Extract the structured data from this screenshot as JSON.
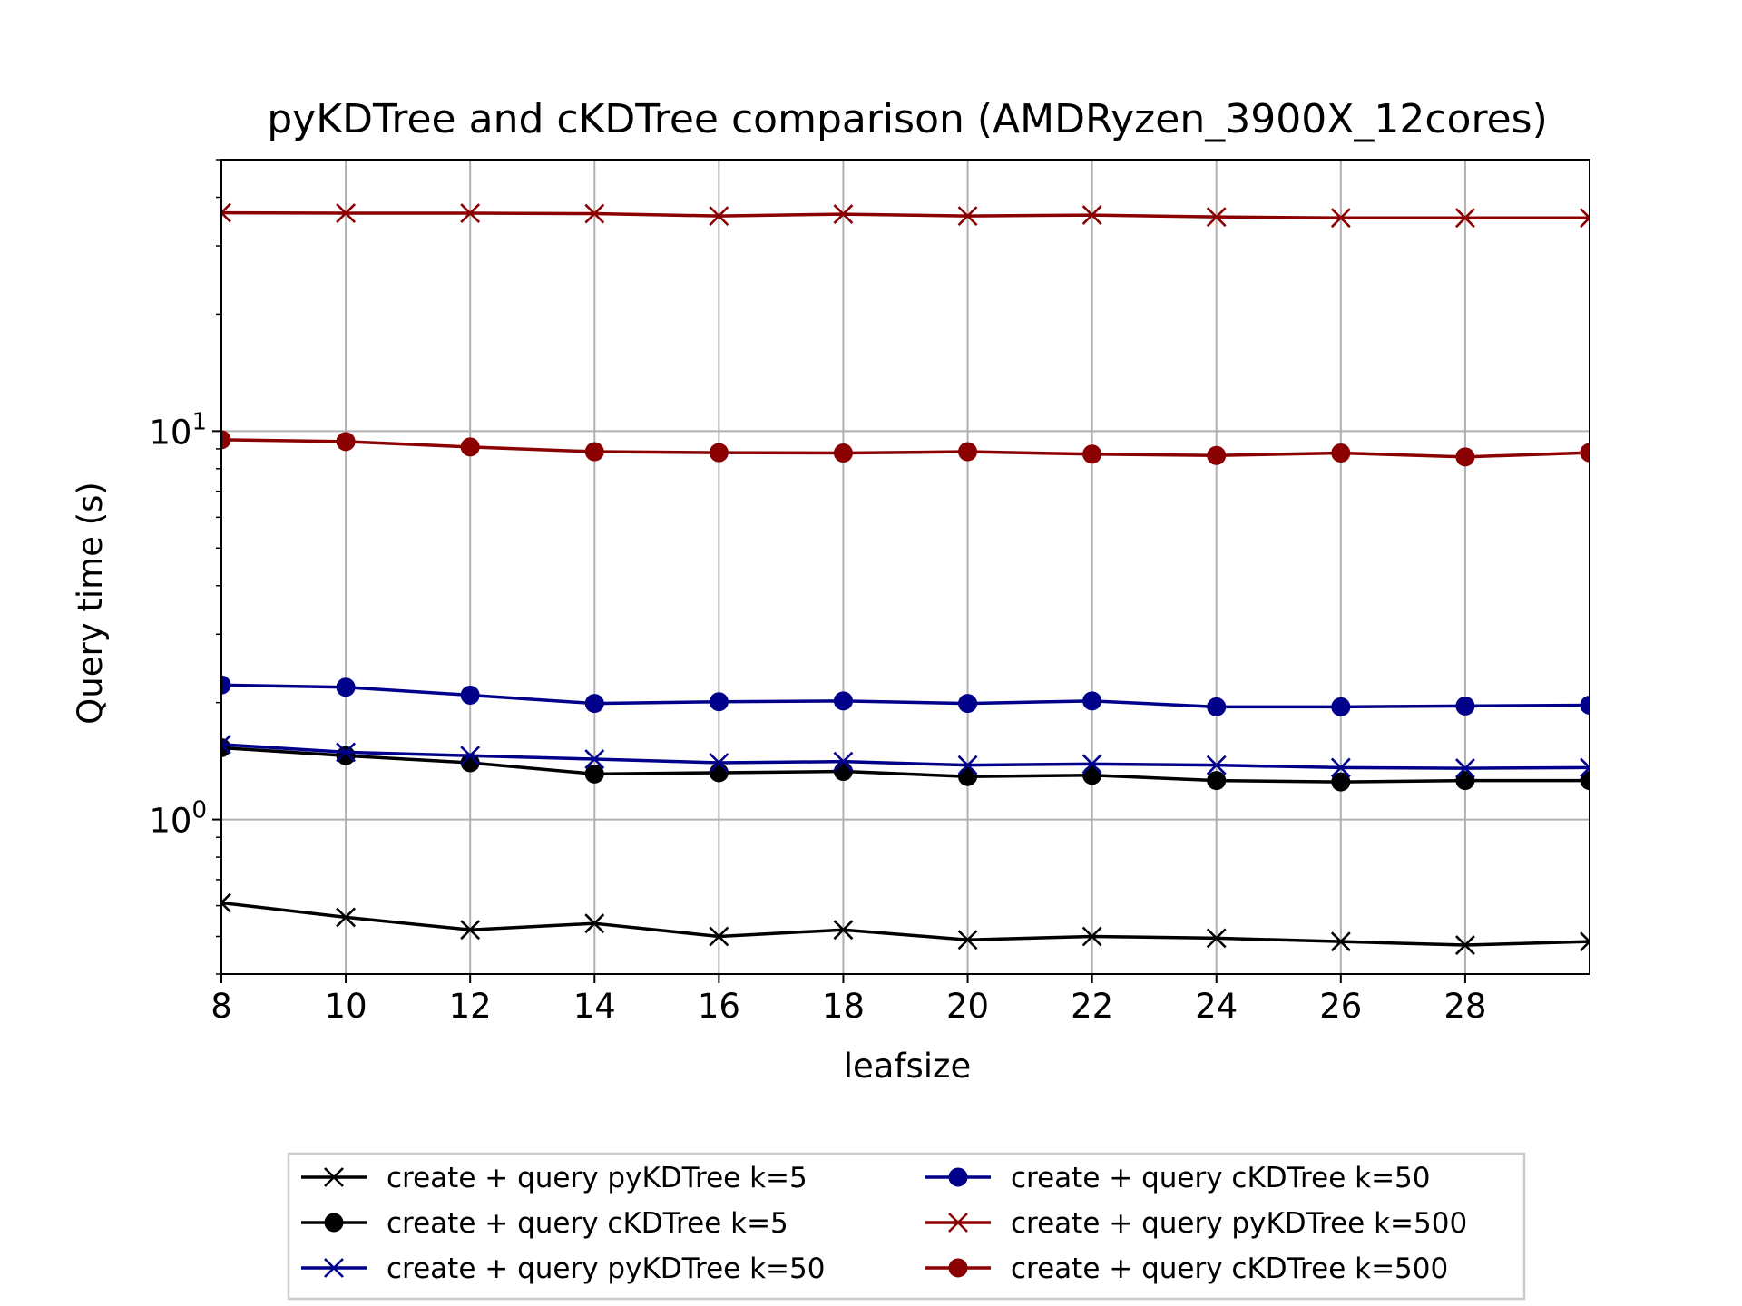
{
  "chart_data": {
    "type": "line",
    "title": "pyKDTree and cKDTree comparison (AMDRyzen_3900X_12cores)",
    "xlabel": "leafsize",
    "ylabel": "Query time (s)",
    "xlim": [
      8,
      30
    ],
    "ylim": [
      0.4,
      50
    ],
    "yscale": "log",
    "grid": true,
    "legend_position": "below",
    "x": [
      8,
      10,
      12,
      14,
      16,
      18,
      20,
      22,
      24,
      26,
      28,
      30
    ],
    "x_ticks": [
      "8",
      "10",
      "12",
      "14",
      "16",
      "18",
      "20",
      "22",
      "24",
      "26",
      "28"
    ],
    "y_ticks": [
      {
        "base": "10",
        "exp": "0"
      },
      {
        "base": "10",
        "exp": "1"
      }
    ],
    "series": [
      {
        "name": "create + query pyKDTree k=5",
        "color": "#000000",
        "marker": "x",
        "values": [
          0.61,
          0.56,
          0.52,
          0.54,
          0.5,
          0.52,
          0.49,
          0.5,
          0.495,
          0.485,
          0.475,
          0.485
        ]
      },
      {
        "name": "create + query cKDTree k=5",
        "color": "#000000",
        "marker": "o",
        "values": [
          1.53,
          1.46,
          1.4,
          1.31,
          1.32,
          1.33,
          1.29,
          1.3,
          1.26,
          1.25,
          1.26,
          1.26
        ]
      },
      {
        "name": "create + query pyKDTree k=50",
        "color": "#00008b",
        "marker": "x",
        "values": [
          1.56,
          1.49,
          1.46,
          1.43,
          1.4,
          1.41,
          1.38,
          1.39,
          1.38,
          1.36,
          1.355,
          1.36
        ]
      },
      {
        "name": "create + query cKDTree k=50",
        "color": "#00008b",
        "marker": "o",
        "values": [
          2.22,
          2.19,
          2.09,
          1.99,
          2.01,
          2.02,
          1.99,
          2.02,
          1.95,
          1.95,
          1.96,
          1.97
        ]
      },
      {
        "name": "create + query pyKDTree k=500",
        "color": "#8b0000",
        "marker": "x",
        "values": [
          36.5,
          36.4,
          36.4,
          36.3,
          35.8,
          36.2,
          35.8,
          36.0,
          35.6,
          35.4,
          35.4,
          35.4
        ]
      },
      {
        "name": "create + query cKDTree k=500",
        "color": "#8b0000",
        "marker": "o",
        "values": [
          9.5,
          9.4,
          9.1,
          8.85,
          8.8,
          8.78,
          8.85,
          8.72,
          8.65,
          8.78,
          8.58,
          8.8
        ]
      }
    ]
  }
}
